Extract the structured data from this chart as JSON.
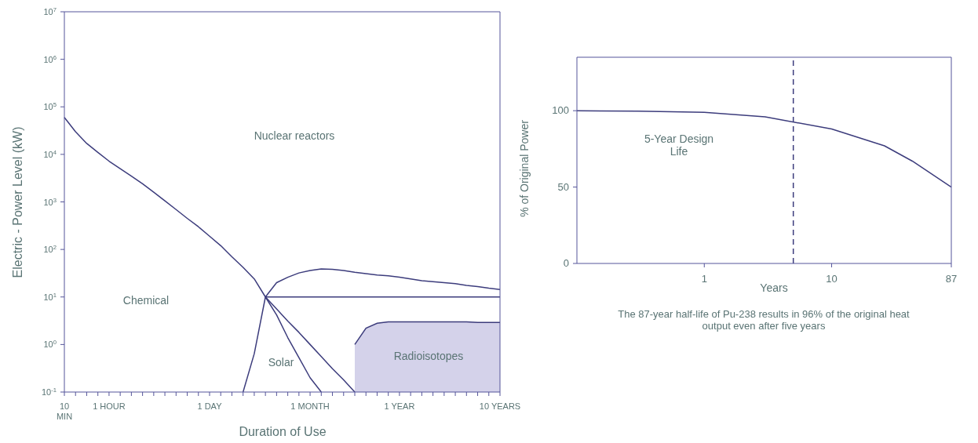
{
  "chart_data": [
    {
      "type": "line",
      "xlabel": "Duration of Use",
      "ylabel": "Electric - Power Level (kW)",
      "log": "y",
      "categories": [
        "10\nMIN",
        null,
        null,
        null,
        "1 HOUR",
        null,
        null,
        null,
        null,
        null,
        null,
        null,
        null,
        "1 DAY",
        null,
        null,
        null,
        null,
        null,
        null,
        null,
        null,
        "1 MONTH",
        null,
        null,
        null,
        null,
        null,
        null,
        null,
        "1 YEAR",
        null,
        null,
        null,
        null,
        null,
        null,
        null,
        null,
        "10 YEARS"
      ],
      "ylim": [
        0.1,
        10000000
      ],
      "yticks": [
        {
          "value": 0.1,
          "label": "10$^{-1}$"
        },
        {
          "value": 1,
          "label": "10$^{0}$"
        },
        {
          "value": 10,
          "label": "10$^{1}$"
        },
        {
          "value": 100,
          "label": "10$^{2}$"
        },
        {
          "value": 1000,
          "label": "10$^{3}$"
        },
        {
          "value": 10000,
          "label": "10$^{4}$"
        },
        {
          "value": 100000,
          "label": "10$^{5}$"
        },
        {
          "value": 1000000,
          "label": "10$^{6}$"
        },
        {
          "value": 10000000,
          "label": "10$^{7}$"
        }
      ],
      "marker": "none",
      "line_style": "solid",
      "series": [
        {
          "color": "#3c3c7c",
          "values": [
            60000,
            30000,
            17000,
            11000,
            7200,
            5000,
            3500,
            2400,
            1600,
            1050,
            690,
            450,
            300,
            190,
            120,
            70,
            42,
            24,
            10,
            20,
            26,
            32,
            36,
            39,
            38,
            36,
            33,
            31,
            29,
            28,
            26,
            24,
            22,
            21,
            20,
            19,
            17.5,
            16.5,
            15.3,
            14.4
          ]
        },
        {
          "color": "#3c3c7c",
          "values": [
            null,
            null,
            null,
            null,
            null,
            null,
            null,
            null,
            null,
            null,
            null,
            null,
            null,
            null,
            null,
            null,
            null,
            null,
            10,
            10,
            10,
            10,
            10,
            10,
            10,
            10,
            10,
            10,
            10,
            10,
            10,
            10,
            10,
            10,
            10,
            10,
            10,
            10,
            10,
            10
          ]
        },
        {
          "color": "#3c3c7c",
          "values": [
            null,
            null,
            null,
            null,
            null,
            null,
            null,
            null,
            null,
            null,
            null,
            null,
            null,
            null,
            null,
            null,
            null,
            null,
            10,
            5.6,
            3.1,
            1.8,
            1.0,
            0.56,
            0.31,
            0.18,
            0.1,
            null,
            null,
            null,
            null,
            null,
            null,
            null,
            null,
            null,
            null,
            null,
            null,
            null
          ]
        },
        {
          "color": "#3c3c7c",
          "values": [
            null,
            null,
            null,
            null,
            null,
            null,
            null,
            null,
            null,
            null,
            null,
            null,
            null,
            null,
            null,
            null,
            0.1,
            0.64,
            10,
            4.2,
            1.4,
            0.53,
            0.2,
            0.1,
            null,
            null,
            null,
            null,
            null,
            null,
            null,
            null,
            null,
            null,
            null,
            null,
            null,
            null,
            null,
            null
          ]
        },
        {
          "type": "area",
          "color": "#d4d2ea",
          "values": [
            null,
            null,
            null,
            null,
            null,
            null,
            null,
            null,
            null,
            null,
            null,
            null,
            null,
            null,
            null,
            null,
            null,
            null,
            null,
            null,
            null,
            null,
            null,
            null,
            null,
            null,
            1.0,
            2.2,
            2.8,
            3.0,
            3.0,
            3.0,
            3.0,
            3.0,
            3.0,
            3.0,
            3.0,
            2.9,
            2.9,
            2.9
          ]
        }
      ],
      "annotations": [
        "Nuclear reactors",
        "Chemical",
        "Solar",
        "Radioisotopes"
      ]
    },
    {
      "type": "line",
      "xlabel": "Years",
      "ylabel": "% of Original Power",
      "log": "x",
      "xlim": [
        0.1,
        87
      ],
      "xticks": [
        1,
        10,
        87
      ],
      "ylim": [
        0,
        135
      ],
      "yticks": [
        0,
        50,
        100
      ],
      "marker": "none",
      "line_style": "solid",
      "series": [
        {
          "color": "#3c3c7c",
          "x": [
            0.1,
            0.3,
            1,
            3,
            10,
            26,
            43,
            87
          ],
          "values": [
            100,
            99.7,
            99,
            96,
            88,
            77,
            67,
            50
          ]
        }
      ],
      "ref_lines": [
        {
          "axis": "x",
          "value": 5,
          "line_style": "dashed",
          "color": "#3c3c7c"
        }
      ],
      "annotations": [
        "5-Year Design\nLife",
        "The 87-year half-life of Pu-238 results in 96% of the original heat\noutput even after five years"
      ]
    }
  ]
}
